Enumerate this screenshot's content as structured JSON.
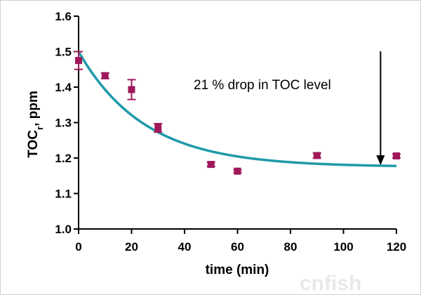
{
  "chart_data": {
    "type": "scatter",
    "title": "",
    "xlabel": "time (min)",
    "ylabel": {
      "main": "TOC",
      "sub": "r",
      "unit": ", ppm"
    },
    "xlim": [
      0,
      120
    ],
    "ylim": [
      1.0,
      1.6
    ],
    "xticks": [
      "0",
      "20",
      "40",
      "60",
      "80",
      "100",
      "120"
    ],
    "yticks": [
      "1.0",
      "1.1",
      "1.2",
      "1.3",
      "1.4",
      "1.5",
      "1.6"
    ],
    "grid": false,
    "series": [
      {
        "points": [
          {
            "x": 0,
            "y": 1.475,
            "err": 0.025
          },
          {
            "x": 10,
            "y": 1.432,
            "err": 0.008
          },
          {
            "x": 20,
            "y": 1.393,
            "err": 0.028
          },
          {
            "x": 30,
            "y": 1.285,
            "err": 0.012
          },
          {
            "x": 50,
            "y": 1.182,
            "err": 0.006
          },
          {
            "x": 60,
            "y": 1.163,
            "err": 0.004
          },
          {
            "x": 90,
            "y": 1.207,
            "err": 0.007
          },
          {
            "x": 120,
            "y": 1.206,
            "err": 0.005
          }
        ],
        "marker_color": "#a0185a"
      },
      {
        "fit": {
          "model": "exponential decay",
          "y0": 1.5,
          "plateau": 1.175,
          "k": 0.04,
          "x_range": [
            0,
            120
          ]
        },
        "line_color": "#1f9aaa"
      }
    ],
    "annotation": {
      "text": "21 % drop in TOC level",
      "arrow": {
        "x": 114,
        "y_from": 1.6,
        "y_to": 1.18
      }
    },
    "colors": {
      "marker": "#a0185a",
      "fit": "#1f9aaa",
      "axis": "#000000"
    }
  },
  "watermark": "cnfish"
}
